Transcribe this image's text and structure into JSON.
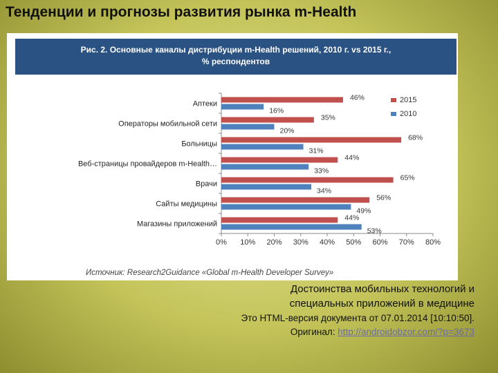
{
  "slide": {
    "title": "Тенденции и прогнозы развития рынка m-Health"
  },
  "figure": {
    "header_line1": "Рис. 2. Основные каналы дистрибуции m-Health решений, 2010 г. vs 2015 г.,",
    "header_line2": "% респондентов",
    "source": "Источник: Research2Guidance «Global m-Health Developer Survey»"
  },
  "caption": {
    "line1": "Достоинства мобильных технологий и",
    "line2": "специальных приложений в медицине"
  },
  "meta": {
    "html_version": "Это HTML-версия документа от 07.01.2014 [10:10:50].",
    "original_label": "Оригинал:",
    "original_link": "http://androidobzor.com/?p=3673"
  },
  "chart_data": {
    "type": "bar",
    "orientation": "horizontal",
    "categories": [
      "Аптеки",
      "Операторы мобильной сети",
      "Больницы",
      "Веб-страницы провайдеров m-Health…",
      "Врачи",
      "Сайты медицины",
      "Магазины приложений"
    ],
    "series": [
      {
        "name": "2015",
        "color": "#c0504d",
        "values": [
          46,
          35,
          68,
          44,
          65,
          56,
          44
        ],
        "labels": [
          "46%",
          "35%",
          "68%",
          "44%",
          "65%",
          "56%",
          "44%"
        ]
      },
      {
        "name": "2010",
        "color": "#4f81bd",
        "values": [
          16,
          20,
          31,
          33,
          34,
          49,
          53
        ],
        "labels": [
          "16%",
          "20%",
          "31%",
          "33%",
          "34%",
          "49%",
          "53%"
        ]
      }
    ],
    "xlim": [
      0,
      80
    ],
    "xticks": [
      "0%",
      "10%",
      "20%",
      "30%",
      "40%",
      "50%",
      "60%",
      "70%",
      "80%"
    ],
    "legend_position": "top-right",
    "grid": false
  }
}
